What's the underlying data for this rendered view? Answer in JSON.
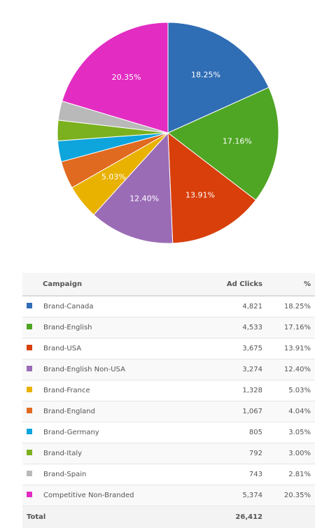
{
  "chart_data": {
    "type": "pie",
    "slices": [
      {
        "name": "Brand-Canada",
        "percent": 18.25,
        "color": "#2f6db5"
      },
      {
        "name": "Brand-English",
        "percent": 17.16,
        "color": "#4fa524"
      },
      {
        "name": "Brand-USA",
        "percent": 13.91,
        "color": "#d83f0b"
      },
      {
        "name": "Brand-English Non-USA",
        "percent": 12.4,
        "color": "#9b6cb6"
      },
      {
        "name": "Brand-France",
        "percent": 5.03,
        "color": "#e9b100"
      },
      {
        "name": "Brand-England",
        "percent": 4.04,
        "color": "#e06a1f"
      },
      {
        "name": "Brand-Germany",
        "percent": 3.05,
        "color": "#0ea5dd"
      },
      {
        "name": "Brand-Italy",
        "percent": 3.0,
        "color": "#7bb01e"
      },
      {
        "name": "Brand-Spain",
        "percent": 2.81,
        "color": "#b9b9b9"
      },
      {
        "name": "Competitive Non-Branded",
        "percent": 20.35,
        "color": "#e32cc2"
      }
    ],
    "labeled_slices": [
      "18.25%",
      "17.16%",
      "13.91%",
      "12.40%",
      "5.03%",
      null,
      null,
      null,
      null,
      "20.35%"
    ]
  },
  "table": {
    "headers": {
      "campaign": "Campaign",
      "clicks": "Ad Clicks",
      "pct": "%"
    },
    "rows": [
      {
        "campaign": "Brand-Canada",
        "clicks": "4,821",
        "pct": "18.25%",
        "color": "#2f6db5"
      },
      {
        "campaign": "Brand-English",
        "clicks": "4,533",
        "pct": "17.16%",
        "color": "#4fa524"
      },
      {
        "campaign": "Brand-USA",
        "clicks": "3,675",
        "pct": "13.91%",
        "color": "#d83f0b"
      },
      {
        "campaign": "Brand-English Non-USA",
        "clicks": "3,274",
        "pct": "12.40%",
        "color": "#9b6cb6"
      },
      {
        "campaign": "Brand-France",
        "clicks": "1,328",
        "pct": "5.03%",
        "color": "#e9b100"
      },
      {
        "campaign": "Brand-England",
        "clicks": "1,067",
        "pct": "4.04%",
        "color": "#e06a1f"
      },
      {
        "campaign": "Brand-Germany",
        "clicks": "805",
        "pct": "3.05%",
        "color": "#0ea5dd"
      },
      {
        "campaign": "Brand-Italy",
        "clicks": "792",
        "pct": "3.00%",
        "color": "#7bb01e"
      },
      {
        "campaign": "Brand-Spain",
        "clicks": "743",
        "pct": "2.81%",
        "color": "#b9b9b9"
      },
      {
        "campaign": "Competitive Non-Branded",
        "clicks": "5,374",
        "pct": "20.35%",
        "color": "#e32cc2"
      }
    ],
    "footer": {
      "label": "Total",
      "clicks": "26,412"
    }
  }
}
